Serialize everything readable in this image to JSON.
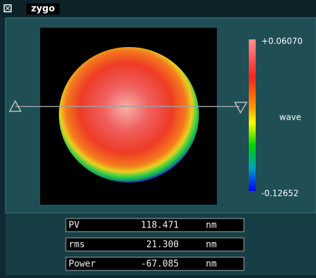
{
  "header": {
    "logo": "zygo"
  },
  "colorbar": {
    "max": "+0.06070",
    "min": "-0.12652",
    "unit": "wave"
  },
  "stats": [
    {
      "label": "PV",
      "value": "118.471",
      "unit": "nm"
    },
    {
      "label": "rms",
      "value": "21.300",
      "unit": "nm"
    },
    {
      "label": "Power",
      "value": "-67.085",
      "unit": "nm"
    }
  ]
}
